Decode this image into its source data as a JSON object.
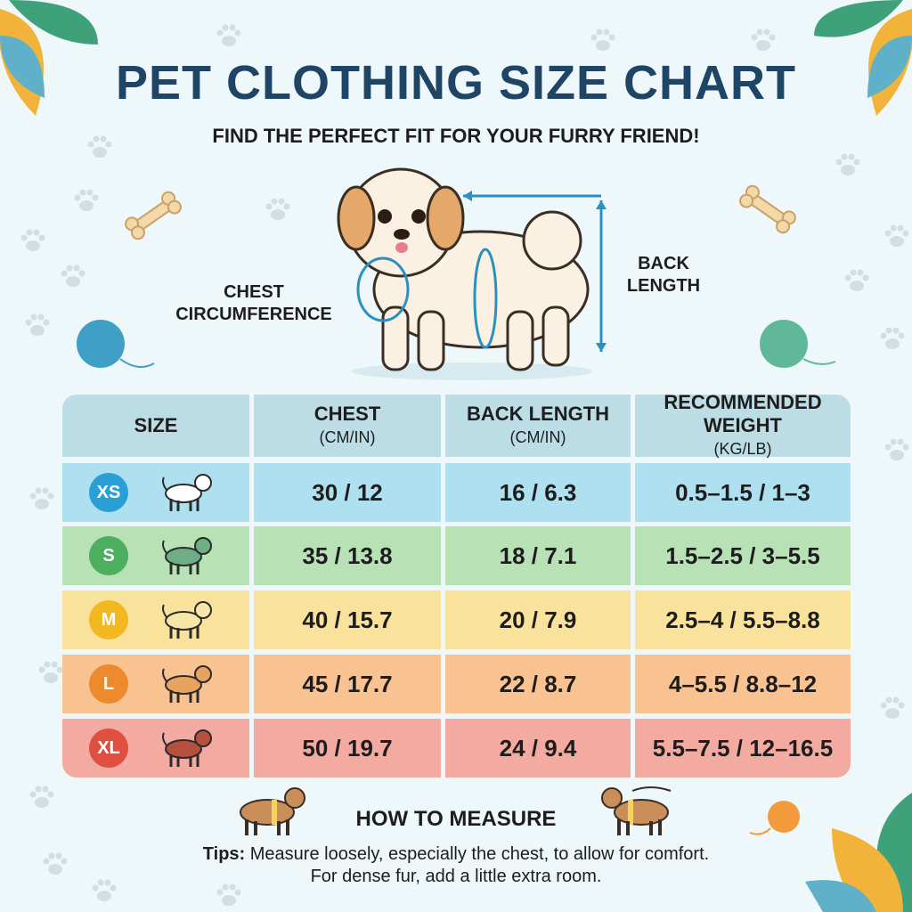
{
  "header": {
    "title": "PET CLOTHING SIZE CHART",
    "subtitle": "FIND THE PERFECT FIT FOR YOUR FURRY FRIEND!"
  },
  "diagram": {
    "chest_label": "CHEST CIRCUMFERENCE",
    "back_label": "BACK LENGTH"
  },
  "table": {
    "headers": [
      {
        "main": "SIZE",
        "unit": ""
      },
      {
        "main": "CHEST",
        "unit": "(CM/IN)"
      },
      {
        "main": "BACK LENGTH",
        "unit": "(CM/IN)"
      },
      {
        "main": "RECOMMENDED WEIGHT",
        "unit": "(KG/LB)"
      }
    ],
    "header_color": "#bcdde6",
    "rows": [
      {
        "size": "XS",
        "chest": "30 / 12",
        "back": "16 / 6.3",
        "weight": "0.5–1.5 / 1–3",
        "bg": "#aee0ef",
        "badge": "#2a9fd6",
        "dog": "#ffffff"
      },
      {
        "size": "S",
        "chest": "35 / 13.8",
        "back": "18 / 7.1",
        "weight": "1.5–2.5 / 3–5.5",
        "bg": "#b8e1b6",
        "badge": "#4cae5f",
        "dog": "#6fae84"
      },
      {
        "size": "M",
        "chest": "40 / 15.7",
        "back": "20 / 7.9",
        "weight": "2.5–4 / 5.5–8.8",
        "bg": "#f9e39c",
        "badge": "#f2b820",
        "dog": "#f6e6a8"
      },
      {
        "size": "L",
        "chest": "45 / 17.7",
        "back": "22 / 8.7",
        "weight": "4–5.5 / 8.8–12",
        "bg": "#f9c291",
        "badge": "#ee8a2e",
        "dog": "#e7a360"
      },
      {
        "size": "XL",
        "chest": "50 / 19.7",
        "back": "24 / 9.4",
        "weight": "5.5–7.5 / 12–16.5",
        "bg": "#f3aaa1",
        "badge": "#df5040",
        "dog": "#b5503f"
      }
    ]
  },
  "footer": {
    "howto": "HOW TO MEASURE",
    "tips_label": "Tips:",
    "tips_text": " Measure loosely, especially the chest, to allow for comfort.",
    "tips_line2": "For dense fur, add a little extra room."
  }
}
